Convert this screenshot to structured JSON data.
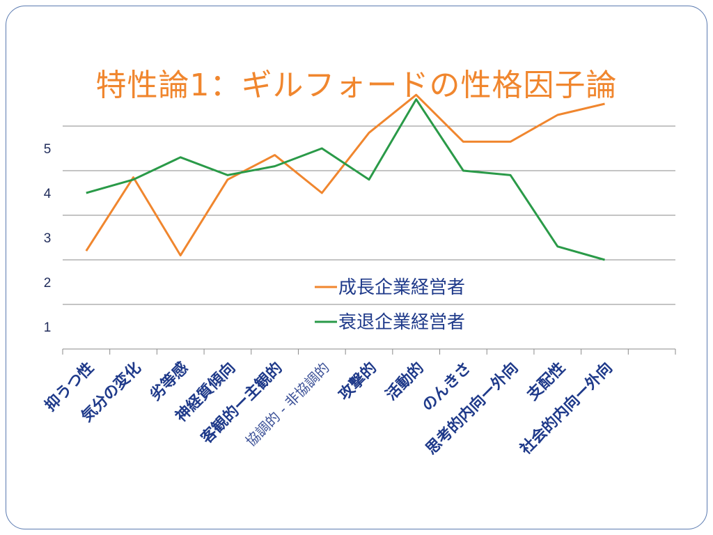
{
  "slide": {
    "title": "特性論1：ギルフォードの性格因子論"
  },
  "chart_data": {
    "type": "line",
    "categories": [
      "抑うつ性",
      "気分の変化",
      "劣等感",
      "神経質傾向",
      "客観的ー主観的",
      "協調的 - 非協調的",
      "攻撃的",
      "活動的",
      "のんきさ",
      "思考的内向ー外向",
      "支配性",
      "社会的内向ー外向"
    ],
    "light_categories": [
      5
    ],
    "ylim": [
      0,
      5
    ],
    "yticks": [
      1,
      2,
      3,
      4,
      5
    ],
    "grid": true,
    "legend_position": "center-right",
    "series": [
      {
        "name": "成長企業経営者",
        "color": "#f0862e",
        "values": [
          2.2,
          3.85,
          2.1,
          3.8,
          4.35,
          3.5,
          4.85,
          5.7,
          4.65,
          4.65,
          5.25,
          5.5
        ]
      },
      {
        "name": "衰退企業経営者",
        "color": "#2a9a48",
        "values": [
          3.5,
          3.8,
          4.3,
          3.9,
          4.1,
          4.5,
          3.8,
          5.6,
          4.0,
          3.9,
          2.3,
          2.0
        ]
      }
    ]
  }
}
